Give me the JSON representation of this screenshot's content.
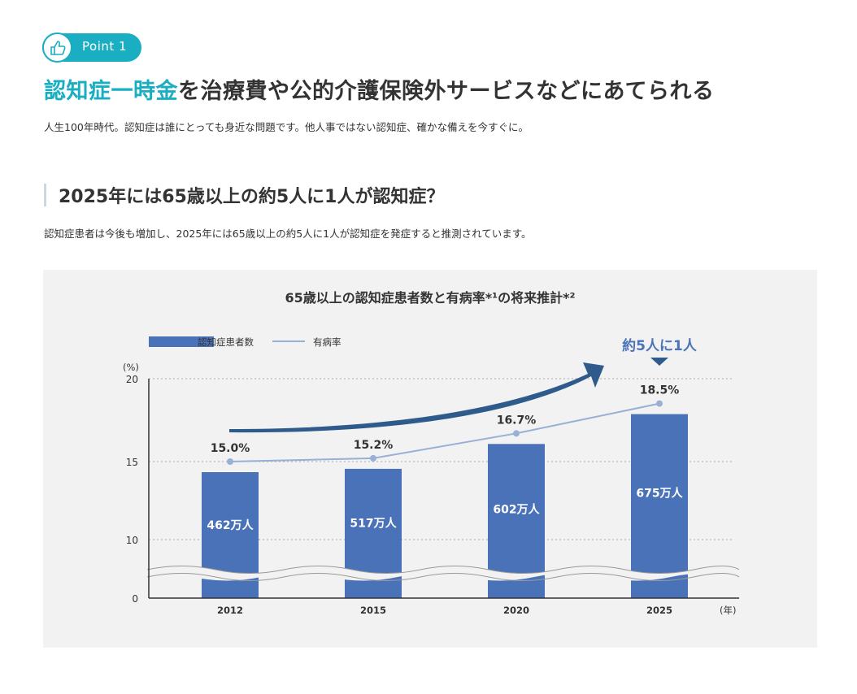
{
  "point": {
    "label": "Point 1",
    "icon": "thumbs-up-icon"
  },
  "headline": {
    "accent": "認知症一時金",
    "rest": "を治療費や公的介護保険外サービスなどにあてられる"
  },
  "lead": "人生100年時代。認知症は誰にとっても身近な問題です。他人事ではない認知症、確かな備えを今すぐに。",
  "section": {
    "title": "2025年には65歳以上の約5人に1人が認知症？",
    "desc": "認知症患者は今後も増加し、2025年には65歳以上の約5人に1人が認知症を発症すると推測されています。"
  },
  "colors": {
    "accent": "#1aaec2",
    "bar": "#4a72b8",
    "line": "#98b0d6",
    "arrow": "#2f5b8c",
    "callout": "#4a72b8"
  },
  "chart_data": {
    "type": "bar",
    "title": "65歳以上の認知症患者数と有病率*¹の将来推計*²",
    "categories": [
      "2012",
      "2015",
      "2020",
      "2025"
    ],
    "xunit": "(年)",
    "yunit": "(%)",
    "yticks": [
      "20",
      "15",
      "10",
      "0"
    ],
    "ylim": [
      0,
      20
    ],
    "axis_break": true,
    "grid": true,
    "legend_position": "top-left",
    "series": [
      {
        "name": "認知症患者数",
        "kind": "bar",
        "labels": [
          "462万人",
          "517万人",
          "602万人",
          "675万人"
        ]
      },
      {
        "name": "有病率",
        "kind": "line",
        "values": [
          15.0,
          15.2,
          16.7,
          18.5
        ],
        "labels": [
          "15.0%",
          "15.2%",
          "16.7%",
          "18.5%"
        ]
      }
    ],
    "callout": "約5人に1人"
  }
}
